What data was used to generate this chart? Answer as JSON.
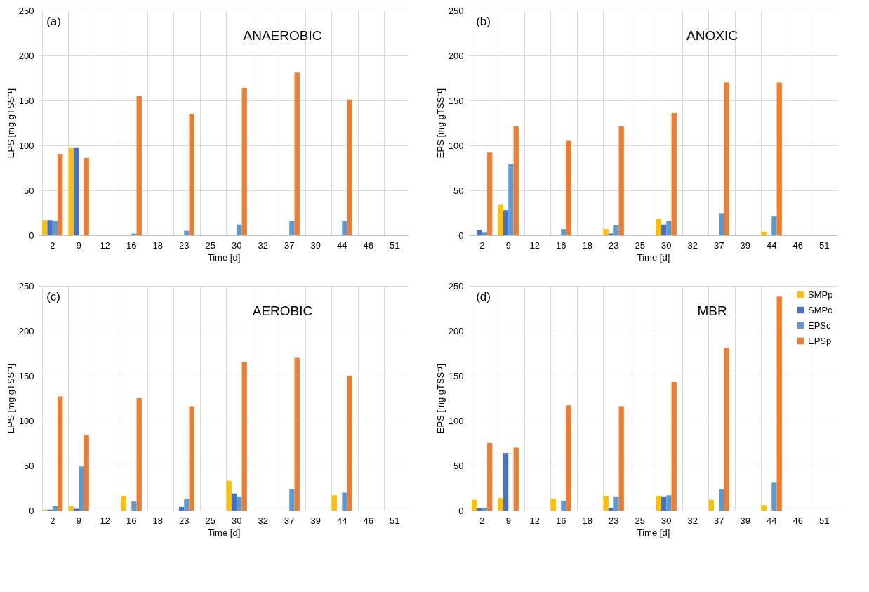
{
  "chart_data": [
    {
      "type": "bar",
      "title": "ANAEROBIC",
      "annotations": [
        "(a)"
      ],
      "xlabel": "Time [d]",
      "ylabel": "EPS [mg gTSS⁻¹]",
      "categories": [
        "2",
        "9",
        "12",
        "16",
        "18",
        "23",
        "25",
        "30",
        "32",
        "37",
        "39",
        "44",
        "46",
        "51"
      ],
      "series": [
        {
          "color": "#ffc000",
          "values": [
            17,
            97,
            null,
            null,
            null,
            null,
            null,
            null,
            null,
            null,
            null,
            null,
            null,
            null
          ]
        },
        {
          "color": "#4472c4",
          "values": [
            17,
            97,
            null,
            null,
            null,
            null,
            null,
            null,
            null,
            null,
            null,
            null,
            null,
            null
          ]
        },
        {
          "color": "#5b9bd5",
          "values": [
            16,
            null,
            null,
            2,
            null,
            5,
            null,
            12,
            null,
            16,
            null,
            16,
            null,
            null
          ]
        },
        {
          "color": "#ed7d31",
          "values": [
            90,
            86,
            null,
            155,
            null,
            135,
            null,
            164,
            null,
            181,
            null,
            151,
            null,
            null
          ]
        }
      ],
      "ylim": [
        0,
        250
      ],
      "yticks": [
        0,
        50,
        100,
        150,
        200,
        250
      ],
      "grid": true,
      "legend": false
    },
    {
      "type": "bar",
      "title": "ANOXIC",
      "annotations": [
        "(b)"
      ],
      "xlabel": "Time [d]",
      "ylabel": "EPS [mg gTSS⁻¹]",
      "categories": [
        "2",
        "9",
        "12",
        "16",
        "18",
        "23",
        "25",
        "30",
        "32",
        "37",
        "39",
        "44",
        "46",
        "51"
      ],
      "series": [
        {
          "color": "#ffc000",
          "values": [
            null,
            34,
            null,
            null,
            null,
            7,
            null,
            18,
            null,
            null,
            null,
            4,
            null,
            null
          ]
        },
        {
          "color": "#4472c4",
          "values": [
            6,
            28,
            null,
            null,
            null,
            2,
            null,
            12,
            null,
            null,
            null,
            null,
            null,
            null
          ]
        },
        {
          "color": "#5b9bd5",
          "values": [
            3,
            79,
            null,
            7,
            null,
            11,
            null,
            16,
            null,
            24,
            null,
            21,
            null,
            null
          ]
        },
        {
          "color": "#ed7d31",
          "values": [
            92,
            121,
            null,
            105,
            null,
            121,
            null,
            136,
            null,
            170,
            null,
            170,
            null,
            null
          ]
        }
      ],
      "ylim": [
        0,
        250
      ],
      "yticks": [
        0,
        50,
        100,
        150,
        200,
        250
      ],
      "grid": true,
      "legend": false
    },
    {
      "type": "bar",
      "title": "AEROBIC",
      "annotations": [
        "(c)"
      ],
      "xlabel": "Time [d]",
      "ylabel": "EPS [mg gTSS⁻¹]",
      "categories": [
        "2",
        "9",
        "12",
        "16",
        "18",
        "23",
        "25",
        "30",
        "32",
        "37",
        "39",
        "44",
        "46",
        "51"
      ],
      "series": [
        {
          "color": "#ffc000",
          "values": [
            1,
            5,
            null,
            16,
            null,
            null,
            null,
            33,
            null,
            null,
            null,
            17,
            null,
            null
          ]
        },
        {
          "color": "#4472c4",
          "values": [
            1,
            2,
            null,
            null,
            null,
            4,
            null,
            19,
            null,
            null,
            null,
            null,
            null,
            null
          ]
        },
        {
          "color": "#5b9bd5",
          "values": [
            5,
            49,
            null,
            10,
            null,
            13,
            null,
            15,
            null,
            24,
            null,
            20,
            null,
            null
          ]
        },
        {
          "color": "#ed7d31",
          "values": [
            127,
            84,
            null,
            125,
            null,
            116,
            null,
            165,
            null,
            170,
            null,
            150,
            null,
            null
          ]
        }
      ],
      "ylim": [
        0,
        250
      ],
      "yticks": [
        0,
        50,
        100,
        150,
        200,
        250
      ],
      "grid": true,
      "legend": false
    },
    {
      "type": "bar",
      "title": "MBR",
      "annotations": [
        "(d)"
      ],
      "xlabel": "Time [d]",
      "ylabel": "EPS [mg gTSS⁻¹]",
      "categories": [
        "2",
        "9",
        "12",
        "16",
        "18",
        "23",
        "25",
        "30",
        "32",
        "37",
        "39",
        "44",
        "46",
        "51"
      ],
      "series": [
        {
          "name": "SMPp",
          "color": "#ffc000",
          "values": [
            12,
            14,
            null,
            13,
            null,
            16,
            null,
            16,
            null,
            12,
            null,
            6,
            null,
            null
          ]
        },
        {
          "name": "SMPc",
          "color": "#4472c4",
          "values": [
            3,
            64,
            null,
            null,
            null,
            3,
            null,
            15,
            null,
            null,
            null,
            null,
            null,
            null
          ]
        },
        {
          "name": "EPSc",
          "color": "#5b9bd5",
          "values": [
            3,
            null,
            null,
            11,
            null,
            15,
            null,
            17,
            null,
            24,
            null,
            31,
            null,
            null
          ]
        },
        {
          "name": "EPSp",
          "color": "#ed7d31",
          "values": [
            75,
            70,
            null,
            117,
            null,
            116,
            null,
            143,
            null,
            181,
            null,
            238,
            null,
            null
          ]
        }
      ],
      "ylim": [
        0,
        250
      ],
      "yticks": [
        0,
        50,
        100,
        150,
        200,
        250
      ],
      "grid": true,
      "legend": "top right"
    }
  ]
}
